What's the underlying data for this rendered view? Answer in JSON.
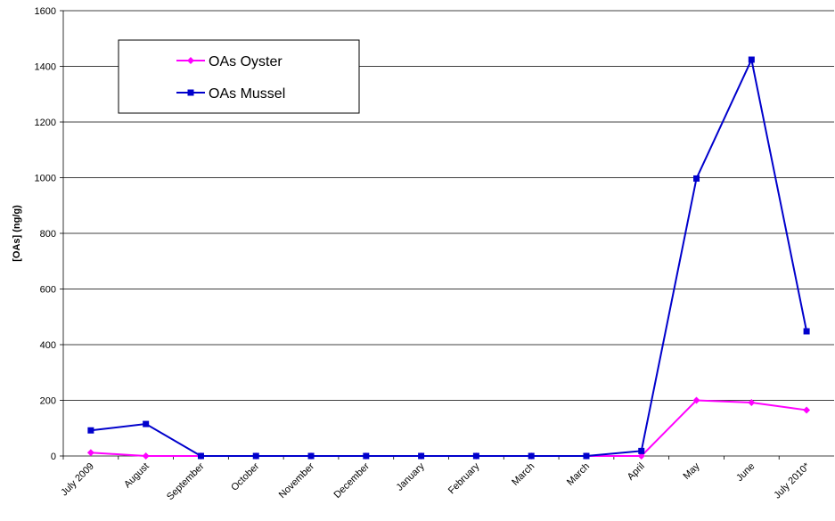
{
  "chart_data": {
    "type": "line",
    "y_label": "[OAs] (ng/g)",
    "categories": [
      "July 2009",
      "August",
      "September",
      "October",
      "November",
      "December",
      "January",
      "February",
      "March",
      "March",
      "April",
      "May",
      "June",
      "July 2010*"
    ],
    "series": [
      {
        "name": "OAs Oyster",
        "color": "#ff00ff",
        "marker": "diamond",
        "values": [
          12,
          0,
          0,
          0,
          0,
          0,
          0,
          0,
          0,
          0,
          0,
          200,
          192,
          165
        ]
      },
      {
        "name": "OAs Mussel",
        "color": "#0000cc",
        "marker": "square",
        "values": [
          92,
          115,
          0,
          0,
          0,
          0,
          0,
          0,
          0,
          0,
          18,
          997,
          1424,
          448
        ]
      }
    ],
    "ylim": [
      0,
      1600
    ],
    "yticks": [
      0,
      200,
      400,
      600,
      800,
      1000,
      1200,
      1400,
      1600
    ],
    "grid": true,
    "legend": "upper left"
  }
}
